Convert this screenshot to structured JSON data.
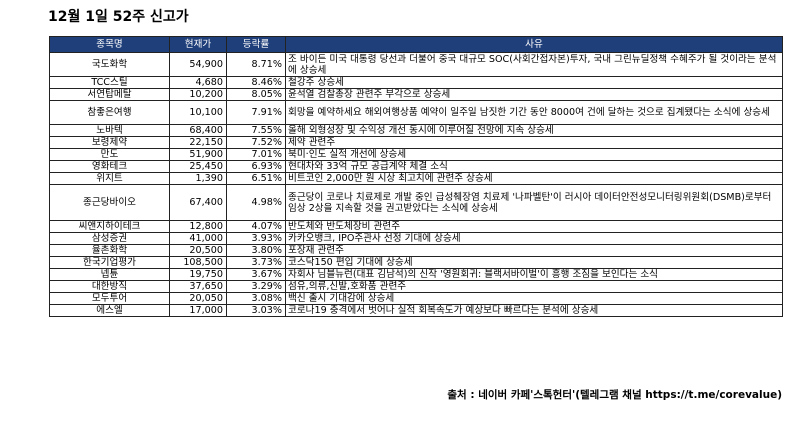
{
  "title": "12월 1일 52주 신고가",
  "table": {
    "headers": [
      "종목명",
      "현재가",
      "등락률",
      "사유"
    ],
    "rows": [
      {
        "name": "국도화학",
        "price": "54,900",
        "change": "8.71%",
        "reason": "조 바이든 미국 대통령 당선과 더불어 중국 대규모 SOC(사회간접자본)투자, 국내 그린뉴딜정책 수혜주가 될 것이라는 분석에 상승세"
      },
      {
        "name": "TCC스틸",
        "price": "4,680",
        "change": "8.46%",
        "reason": "철강주 상승세"
      },
      {
        "name": "서연탑메탈",
        "price": "10,200",
        "change": "8.05%",
        "reason": "윤석열 검찰총장 관련주 부각으로 상승세"
      },
      {
        "name": "참좋은여행",
        "price": "10,100",
        "change": "7.91%",
        "reason": "회망을 예약하세요 해외여행상품 예약이 일주일 남짓한 기간 동안 8000여 건에 달하는 것으로 집계됐다는 소식에 상승세"
      },
      {
        "name": "노바텍",
        "price": "68,400",
        "change": "7.55%",
        "reason": "올해 외형성장 및 수익성 개선 동시에 이루어질 전망에 지속 상승세"
      },
      {
        "name": "보령제약",
        "price": "22,150",
        "change": "7.52%",
        "reason": "제약 관련주"
      },
      {
        "name": "만도",
        "price": "51,900",
        "change": "7.01%",
        "reason": "북미·인도 실적 개선에 상승세"
      },
      {
        "name": "영화테크",
        "price": "25,450",
        "change": "6.93%",
        "reason": "현대차와 33억 규모 공급계약 체결 소식"
      },
      {
        "name": "위지트",
        "price": "1,390",
        "change": "6.51%",
        "reason": "비트코인 2,000만 원 시상 최고치에 관련주 상승세"
      },
      {
        "name": "종근당바이오",
        "price": "67,400",
        "change": "4.98%",
        "reason": "종근당이 코로나 치료제로 개발 중인 급성췌장염 치료제 '나파벨탄'이 러시아 데이터안전성모니터링위원회(DSMB)로부터 임상 2상을 지속할 것을 권고받았다는 소식에 상승세"
      },
      {
        "name": "씨앤지하이테크",
        "price": "12,800",
        "change": "4.07%",
        "reason": "반도체와 반도체장비 관련주"
      },
      {
        "name": "삼성증권",
        "price": "41,000",
        "change": "3.93%",
        "reason": "카카오뱅크, IPO주관사 선정 기대에 상승세"
      },
      {
        "name": "율촌화학",
        "price": "20,500",
        "change": "3.80%",
        "reason": "포장재 관련주"
      },
      {
        "name": "한국기업평가",
        "price": "108,500",
        "change": "3.73%",
        "reason": "코스닥150 편입 기대에 상승세"
      },
      {
        "name": "넵튠",
        "price": "19,750",
        "change": "3.67%",
        "reason": "자회사 님블뉴런(대표 김남석)의 신작 '영원회귀: 블랙서바이벌'이 흥행 조짐을 보인다는 소식"
      },
      {
        "name": "대한방직",
        "price": "37,650",
        "change": "3.29%",
        "reason": "섬유,의류,신발,호화품 관련주"
      },
      {
        "name": "모두투어",
        "price": "20,050",
        "change": "3.08%",
        "reason": "백신 출시 기대감에 상승세"
      },
      {
        "name": "에스엘",
        "price": "17,000",
        "change": "3.03%",
        "reason": "코로나19 충격에서 벗어나 실적 회복속도가 예상보다 빠르다는 분석에 상승세"
      }
    ]
  },
  "source": "출처 : 네이버 카페'스톡헌터'(텔레그램 채널 https://t.me/corevalue)",
  "colors": {
    "header_bg": "#1f3f7a",
    "header_text": "#ffffff"
  }
}
